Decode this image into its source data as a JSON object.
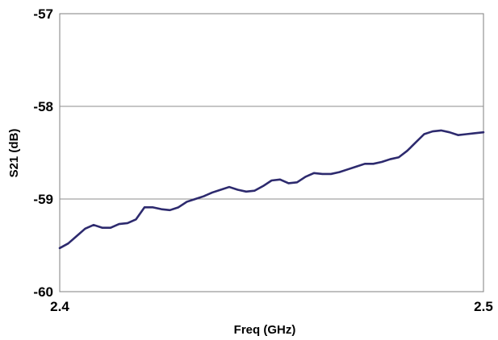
{
  "chart_data": {
    "type": "line",
    "title": "",
    "xlabel": "Freq (GHz)",
    "ylabel": "S21 (dB)",
    "xlim": [
      2.4,
      2.5
    ],
    "ylim": [
      -60,
      -57
    ],
    "x_ticks": [
      "2.4",
      "2.5"
    ],
    "y_ticks": [
      "-57",
      "-58",
      "-59",
      "-60"
    ],
    "grid": {
      "horizontal": true,
      "vertical": false
    },
    "legend": "none",
    "series": [
      {
        "color": "#2d2a6e",
        "x": [
          2.4,
          2.402,
          2.404,
          2.406,
          2.408,
          2.41,
          2.412,
          2.414,
          2.416,
          2.418,
          2.42,
          2.422,
          2.424,
          2.426,
          2.428,
          2.43,
          2.432,
          2.434,
          2.436,
          2.438,
          2.44,
          2.442,
          2.444,
          2.446,
          2.448,
          2.45,
          2.452,
          2.454,
          2.456,
          2.458,
          2.46,
          2.462,
          2.464,
          2.466,
          2.468,
          2.47,
          2.472,
          2.474,
          2.476,
          2.478,
          2.48,
          2.482,
          2.484,
          2.486,
          2.488,
          2.49,
          2.492,
          2.494,
          2.496,
          2.498,
          2.5
        ],
        "y": [
          -59.53,
          -59.48,
          -59.4,
          -59.32,
          -59.28,
          -59.31,
          -59.31,
          -59.27,
          -59.26,
          -59.22,
          -59.09,
          -59.09,
          -59.11,
          -59.12,
          -59.09,
          -59.03,
          -59.0,
          -58.97,
          -58.93,
          -58.9,
          -58.87,
          -58.9,
          -58.92,
          -58.91,
          -58.86,
          -58.8,
          -58.79,
          -58.83,
          -58.82,
          -58.76,
          -58.72,
          -58.73,
          -58.73,
          -58.71,
          -58.68,
          -58.65,
          -58.62,
          -58.62,
          -58.6,
          -58.57,
          -58.55,
          -58.48,
          -58.39,
          -58.3,
          -58.27,
          -58.26,
          -58.28,
          -58.31,
          -58.3,
          -58.29,
          -58.28
        ]
      }
    ]
  }
}
